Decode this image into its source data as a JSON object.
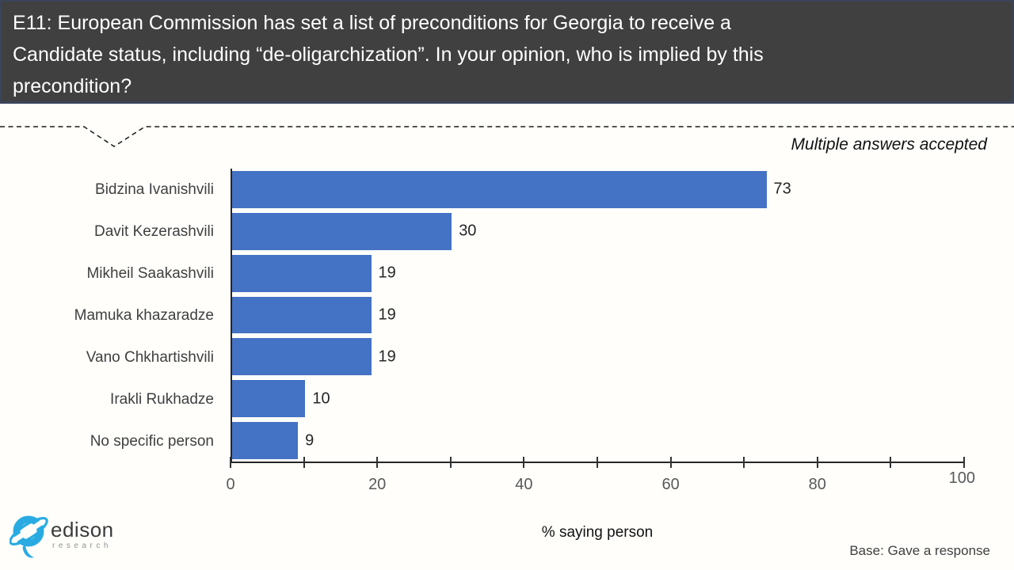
{
  "header": {
    "title": "E11: European Commission has set a list of preconditions for Georgia to receive a Candidate status, including “de-oligarchization”. In your opinion, who is implied by this precondition?",
    "title_lines": [
      "E11: European Commission has set a list of preconditions for Georgia to receive a",
      "Candidate status, including “de-oligarchization”. In your opinion, who is implied by this",
      "precondition?"
    ]
  },
  "note": "Multiple answers accepted",
  "footer": {
    "base_note": "Base: Gave a response"
  },
  "logo": {
    "name": "edison",
    "sub": "research"
  },
  "colors": {
    "bar": "#4472C4",
    "header_bg": "#404040",
    "header_border": "#3a4459",
    "logo_blue": "#29ABE2",
    "axis": "#333333"
  },
  "chart_data": {
    "type": "bar",
    "orientation": "horizontal",
    "title": "",
    "categories": [
      "Bidzina Ivanishvili",
      "Davit Kezerashvili",
      "Mikheil Saakashvili",
      "Mamuka khazaradze",
      "Vano Chkhartishvili",
      "Irakli Rukhadze",
      "No specific person"
    ],
    "values": [
      73,
      30,
      19,
      19,
      19,
      10,
      9
    ],
    "xlabel": "% saying person",
    "xlim": [
      0,
      100
    ],
    "xticks": [
      0,
      20,
      40,
      60,
      80,
      100
    ],
    "minor_tick_step": 10,
    "grid": false,
    "data_labels": true,
    "legend": false,
    "annotation": "Multiple answers accepted"
  }
}
